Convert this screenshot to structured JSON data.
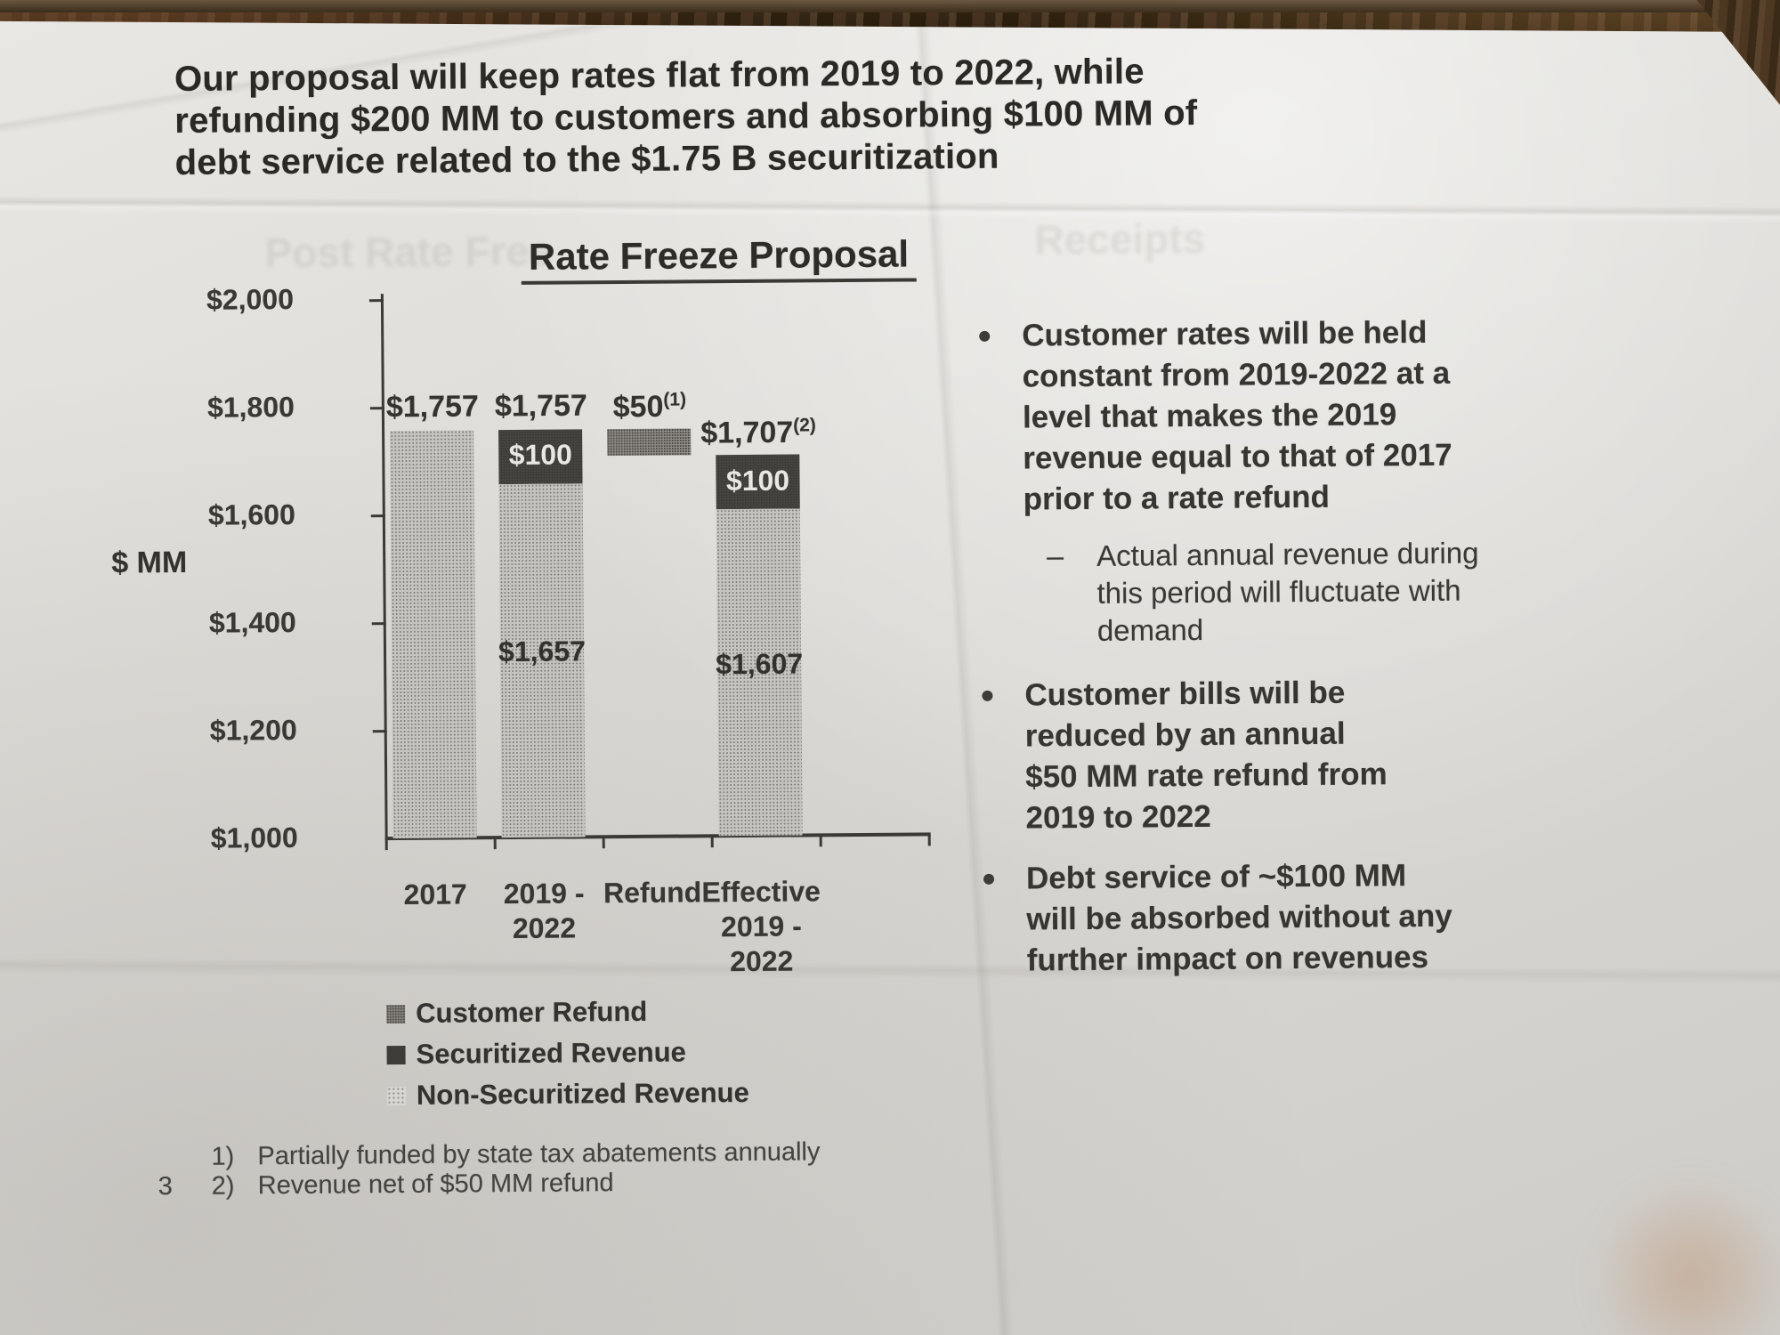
{
  "slide": {
    "title_lines": [
      "Our proposal will keep rates flat from 2019 to 2022, while",
      "refunding $200 MM to customers and absorbing $100 MM of",
      "debt service related to the $1.75 B securitization"
    ],
    "page_number": "3"
  },
  "bleed_through": {
    "left_fragment": "Post Rate Free",
    "right_fragment": "Receipts"
  },
  "chart_data": {
    "type": "bar",
    "variant": "stacked_waterfall",
    "title": "Rate Freeze Proposal",
    "ylabel": "$ MM",
    "ylim": [
      1000,
      2000
    ],
    "ytick_step": 200,
    "ytick_labels": [
      "$2,000",
      "$1,800",
      "$1,600",
      "$1,400",
      "$1,200",
      "$1,000"
    ],
    "grid": false,
    "legend_position": "bottom-left",
    "categories": [
      "2017",
      "2019 - 2022",
      "Refund",
      "Effective 2019 - 2022"
    ],
    "series": [
      {
        "name": "Non-Securitized Revenue",
        "values": [
          1757,
          1657,
          null,
          1607
        ]
      },
      {
        "name": "Securitized Revenue",
        "values": [
          null,
          100,
          null,
          100
        ]
      },
      {
        "name": "Customer Refund",
        "values": [
          null,
          null,
          50,
          null
        ]
      }
    ],
    "bars": [
      {
        "category_lines": [
          "2017"
        ],
        "total_label": "$1,757",
        "total_sup": "",
        "segments": [
          {
            "series": "non_securitized",
            "from": 1000,
            "to": 1757,
            "label": ""
          }
        ]
      },
      {
        "category_lines": [
          "2019 -",
          "2022"
        ],
        "total_label": "$1,757",
        "total_sup": "",
        "segments": [
          {
            "series": "securitized",
            "from": 1657,
            "to": 1757,
            "label": "$100"
          },
          {
            "series": "non_securitized",
            "from": 1000,
            "to": 1657,
            "label": "$1,657"
          }
        ]
      },
      {
        "category_lines": [
          "Refund"
        ],
        "total_label": "$50",
        "total_sup": "(1)",
        "segments": [
          {
            "series": "customer_refund",
            "from": 1707,
            "to": 1757,
            "label": ""
          }
        ]
      },
      {
        "category_lines": [
          "Effective",
          "2019 -",
          "2022"
        ],
        "total_label": "$1,707",
        "total_sup": "(2)",
        "segments": [
          {
            "series": "securitized",
            "from": 1607,
            "to": 1707,
            "label": "$100"
          },
          {
            "series": "non_securitized",
            "from": 1000,
            "to": 1607,
            "label": "$1,607"
          }
        ]
      }
    ]
  },
  "legend": [
    {
      "label": "Customer Refund",
      "swatch": "customer-refund"
    },
    {
      "label": "Securitized Revenue",
      "swatch": "securitized"
    },
    {
      "label": "Non-Securitized Revenue",
      "swatch": "non-securitized"
    }
  ],
  "bullets": [
    {
      "marker": "•",
      "lines": [
        "Customer rates will be held",
        "constant from 2019-2022 at a",
        "level that makes the 2019",
        "revenue equal to that of 2017",
        "prior to a rate refund"
      ]
    },
    {
      "marker": "–",
      "lines": [
        "Actual annual revenue during",
        "this period will fluctuate with",
        "demand"
      ]
    },
    {
      "marker": "•",
      "lines": [
        "Customer bills will be",
        "reduced by an annual",
        "$50 MM rate refund from",
        "2019 to 2022"
      ]
    },
    {
      "marker": "•",
      "lines": [
        "Debt service of ~$100 MM",
        "will be absorbed without any",
        "further impact on revenues"
      ]
    }
  ],
  "footnotes": {
    "items": [
      {
        "marker": "1)",
        "text": "Partially funded by state tax abatements annually"
      },
      {
        "marker": "2)",
        "text": "Revenue net of $50 MM refund"
      }
    ]
  },
  "colors": {
    "paper": "#dddbd7",
    "ink": "#35332f",
    "bar_dark": "#3e3c38",
    "bar_light_stipple": "#c6c4c0",
    "bar_medium_stipple": "#94908b",
    "wood": "#4d3722"
  }
}
